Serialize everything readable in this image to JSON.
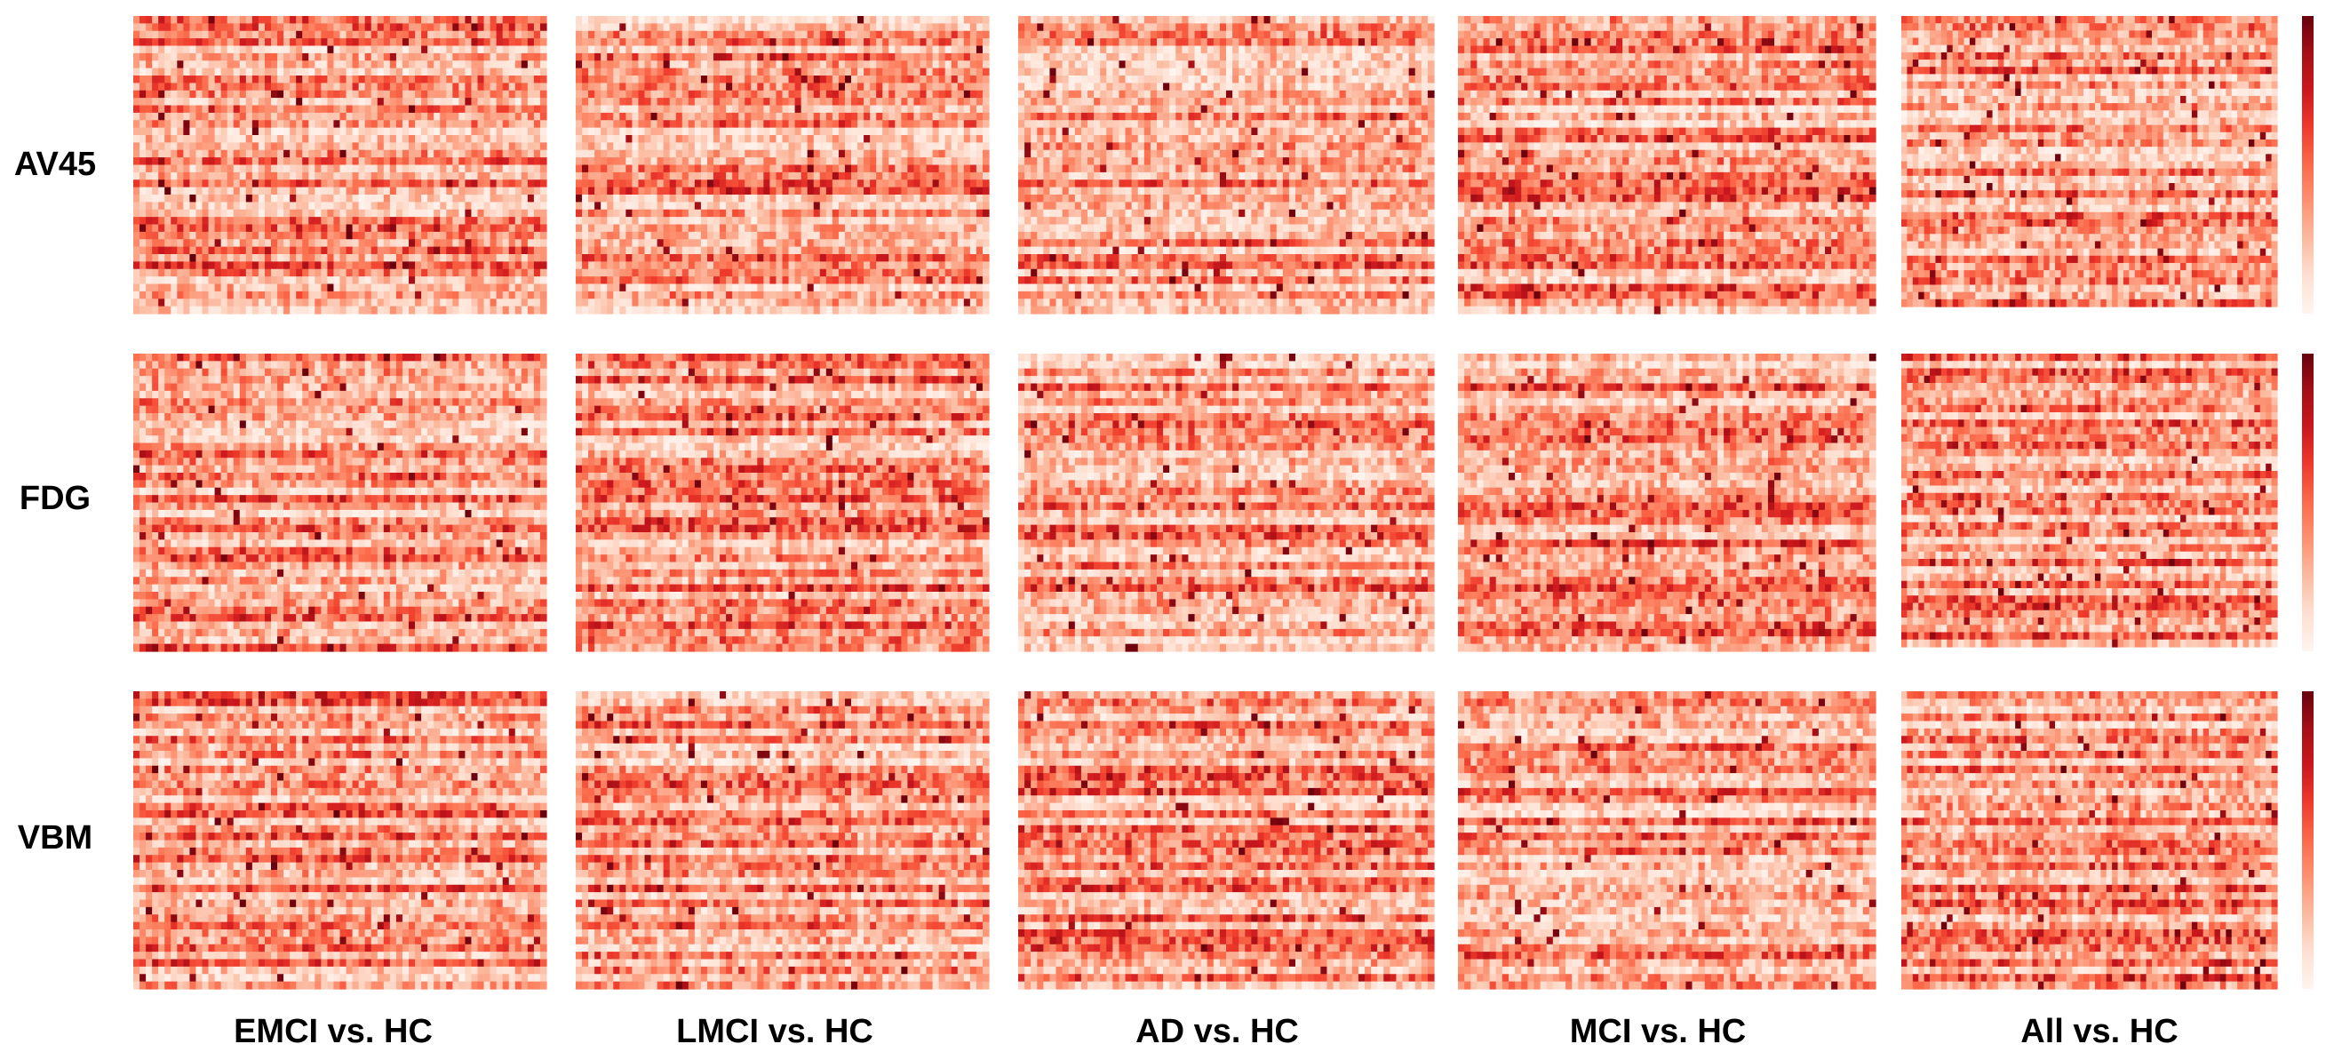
{
  "chart_data": {
    "type": "heatmap",
    "layout": "3x5 grid",
    "colormap": "Reds",
    "row_labels": [
      "AV45",
      "FDG",
      "VBM"
    ],
    "column_labels": [
      "EMCI vs. HC",
      "LMCI vs. HC",
      "AD vs. HC",
      "MCI vs. HC",
      "All vs. HC"
    ],
    "matrix_shape": {
      "rows": 40,
      "cols": 66
    },
    "value_range": [
      0,
      1
    ],
    "colorbar": {
      "shown_on_column": "All vs. HC",
      "tick_labels": []
    },
    "grid": false
  }
}
